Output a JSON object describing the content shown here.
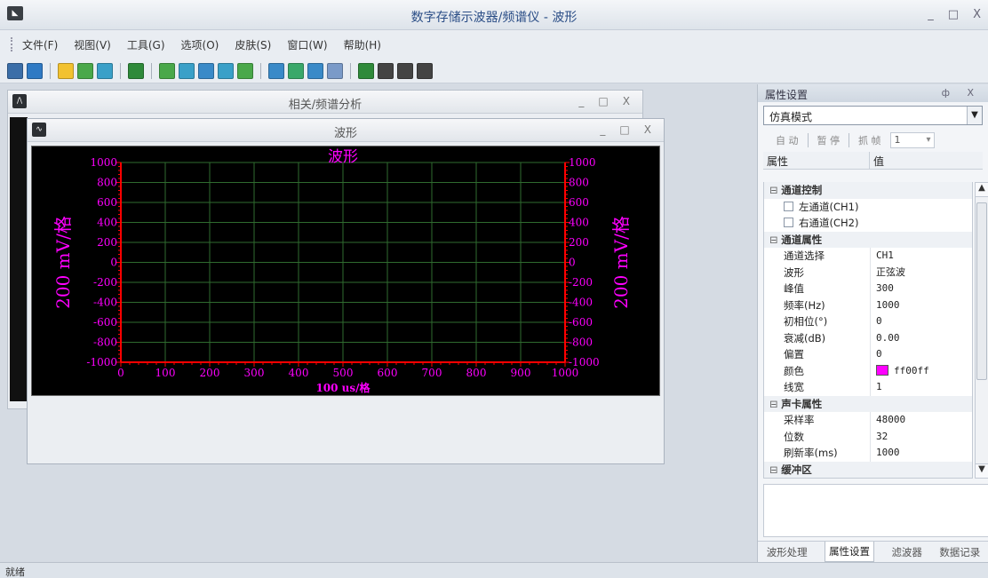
{
  "app": {
    "title": "数字存储示波器/频谱仪 - 波形",
    "icon": "app-logo-icon",
    "controls": [
      "_",
      "□",
      "X"
    ]
  },
  "menu": [
    "文件(F)",
    "视图(V)",
    "工具(G)",
    "选项(O)",
    "皮肤(S)",
    "窗口(W)",
    "帮助(H)"
  ],
  "toolbar": {
    "groups": [
      [
        {
          "name": "save-icon",
          "color": "#3b6ea8"
        },
        {
          "name": "globe-icon",
          "color": "#2f7ac4"
        }
      ],
      [
        {
          "name": "hand-pan-icon",
          "color": "#f2c230"
        },
        {
          "name": "crosshair-icon",
          "color": "#4aa84a"
        },
        {
          "name": "cursor-bars-icon",
          "color": "#3aa0c8"
        }
      ],
      [
        {
          "name": "select-arrow-icon",
          "color": "#2f8a3a"
        }
      ],
      [
        {
          "name": "zoom-in-icon",
          "color": "#4aa84a"
        },
        {
          "name": "zoom-horizontal-icon",
          "color": "#3aa0c8"
        },
        {
          "name": "zoom-fit-h-icon",
          "color": "#3a8ac8"
        },
        {
          "name": "zoom-vertical-icon",
          "color": "#3aa0c8"
        },
        {
          "name": "zoom-fit-v-icon",
          "color": "#4aa84a"
        }
      ],
      [
        {
          "name": "arrow-left-icon",
          "color": "#3a8ac8"
        },
        {
          "name": "arrow-right-icon",
          "color": "#3aa86a"
        },
        {
          "name": "arrow-up-icon",
          "color": "#3a8ac8"
        },
        {
          "name": "arrow-down-icon",
          "color": "#7a9ac8"
        }
      ],
      [
        {
          "name": "cascade-windows-icon",
          "color": "#2f8a3a"
        },
        {
          "name": "tile-horizontal-icon",
          "color": "#444444"
        },
        {
          "name": "tile-vertical-icon",
          "color": "#444444"
        },
        {
          "name": "tile-grid-icon",
          "color": "#444444"
        }
      ]
    ]
  },
  "windows": {
    "back": {
      "title": "相关/频谱分析",
      "icon": "spectrum-window-icon",
      "controls": [
        "_",
        "□",
        "X"
      ]
    },
    "front": {
      "title": "波形",
      "icon": "waveform-window-icon",
      "controls": [
        "_",
        "□",
        "X"
      ]
    }
  },
  "chart_data": {
    "type": "line",
    "title": "波形",
    "xlabel": "100 us/格",
    "ylabel": "200 mV/格",
    "xlim": [
      0,
      1000
    ],
    "ylim": [
      -1000,
      1000
    ],
    "x_ticks": [
      "0",
      "100",
      "200",
      "300",
      "400",
      "500",
      "600",
      "700",
      "800",
      "900",
      "1000"
    ],
    "y_ticks": [
      "1000",
      "800",
      "600",
      "400",
      "200",
      "0",
      "-200",
      "-400",
      "-600",
      "-800",
      "-1000"
    ],
    "grid": true,
    "series": [],
    "colors": {
      "background": "#000000",
      "grid": "#2f6b2f",
      "axis": "#ff0000",
      "text": "#ff00ff"
    }
  },
  "panel": {
    "title": "属性设置",
    "controls": "ф X",
    "mode": "仿真模式",
    "auto_label": "自 动",
    "pause_label": "暂 停",
    "grab_label": "抓 帧",
    "frame_value": "1",
    "col_property": "属性",
    "col_value": "值",
    "rows": [
      {
        "type": "cat",
        "k": "通道控制"
      },
      {
        "type": "chk",
        "k": "左通道(CH1)"
      },
      {
        "type": "chk",
        "k": "右通道(CH2)"
      },
      {
        "type": "cat",
        "k": "通道属性"
      },
      {
        "type": "kv",
        "k": "通道选择",
        "v": "CH1"
      },
      {
        "type": "kv",
        "k": "波形",
        "v": "正弦波"
      },
      {
        "type": "kv",
        "k": "峰值",
        "v": "300"
      },
      {
        "type": "kv",
        "k": "频率(Hz)",
        "v": "1000"
      },
      {
        "type": "kv",
        "k": "初相位(°)",
        "v": "0"
      },
      {
        "type": "kv",
        "k": "衰减(dB)",
        "v": "0.00"
      },
      {
        "type": "kv",
        "k": "偏置",
        "v": "0"
      },
      {
        "type": "color",
        "k": "颜色",
        "v": "ff00ff"
      },
      {
        "type": "kv",
        "k": "线宽",
        "v": "1"
      },
      {
        "type": "cat",
        "k": "声卡属性"
      },
      {
        "type": "kv",
        "k": "采样率",
        "v": "48000"
      },
      {
        "type": "kv",
        "k": "位数",
        "v": "32"
      },
      {
        "type": "kv",
        "k": "刷新率(ms)",
        "v": "1000"
      },
      {
        "type": "cat",
        "k": "缓冲区"
      }
    ],
    "tabs": [
      "波形处理",
      "属性设置",
      "滤波器",
      "数据记录"
    ],
    "active_tab": 1
  },
  "status": {
    "text": "就绪"
  }
}
